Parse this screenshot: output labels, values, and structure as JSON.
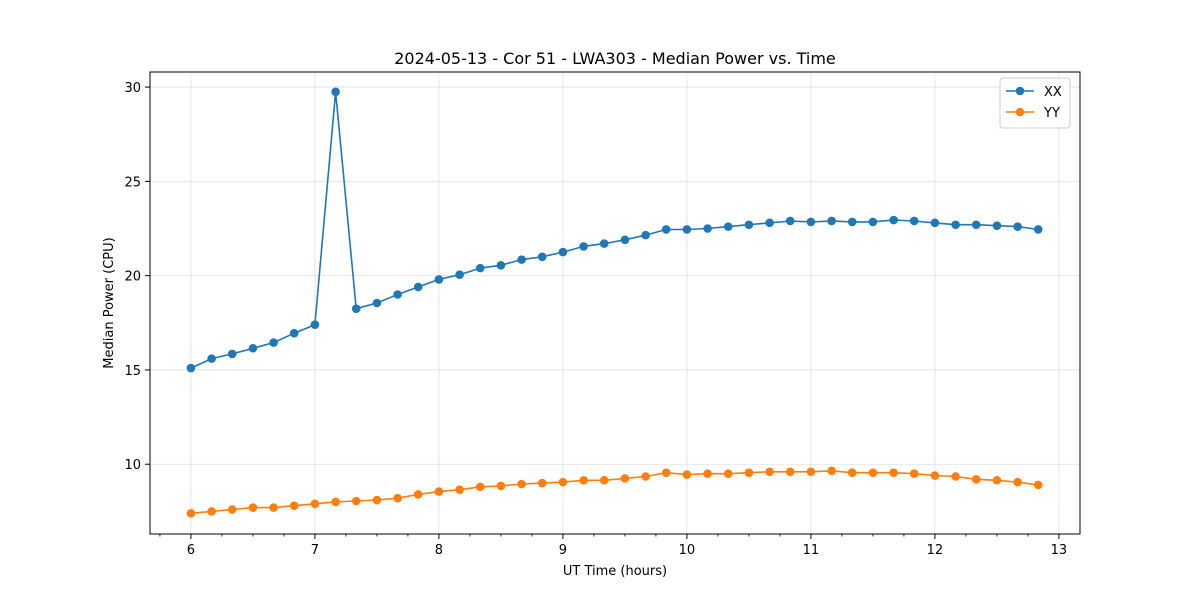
{
  "chart_data": {
    "type": "line",
    "title": "2024-05-13 - Cor 51 - LWA303 - Median Power vs. Time",
    "xlabel": "UT Time (hours)",
    "ylabel": "Median Power (CPU)",
    "xlim": [
      5.67,
      13.17
    ],
    "ylim": [
      6.3,
      30.8
    ],
    "xticks": [
      6,
      7,
      8,
      9,
      10,
      11,
      12,
      13
    ],
    "xtick_labels": [
      "6",
      "7",
      "8",
      "9",
      "10",
      "11",
      "12",
      "13"
    ],
    "yticks": [
      10,
      15,
      20,
      25,
      30
    ],
    "ytick_labels": [
      "10",
      "15",
      "20",
      "25",
      "30"
    ],
    "grid": true,
    "legend_position": "top-right",
    "x": [
      6.0,
      6.167,
      6.333,
      6.5,
      6.667,
      6.833,
      7.0,
      7.167,
      7.333,
      7.5,
      7.667,
      7.833,
      8.0,
      8.167,
      8.333,
      8.5,
      8.667,
      8.833,
      9.0,
      9.167,
      9.333,
      9.5,
      9.667,
      9.833,
      10.0,
      10.167,
      10.333,
      10.5,
      10.667,
      10.833,
      11.0,
      11.167,
      11.333,
      11.5,
      11.667,
      11.833,
      12.0,
      12.167,
      12.333,
      12.5,
      12.667,
      12.833
    ],
    "series": [
      {
        "name": "XX",
        "color": "#1f77b4",
        "values": [
          15.1,
          15.6,
          15.85,
          16.15,
          16.45,
          16.95,
          17.4,
          29.75,
          18.25,
          18.55,
          19.0,
          19.4,
          19.8,
          20.05,
          20.4,
          20.55,
          20.85,
          21.0,
          21.25,
          21.55,
          21.7,
          21.9,
          22.15,
          22.45,
          22.45,
          22.5,
          22.6,
          22.7,
          22.8,
          22.9,
          22.85,
          22.9,
          22.85,
          22.85,
          22.95,
          22.9,
          22.8,
          22.7,
          22.7,
          22.65,
          22.6,
          22.45
        ]
      },
      {
        "name": "YY",
        "color": "#ff7f0e",
        "values": [
          7.4,
          7.5,
          7.6,
          7.7,
          7.7,
          7.8,
          7.9,
          8.0,
          8.05,
          8.1,
          8.2,
          8.4,
          8.55,
          8.65,
          8.8,
          8.85,
          8.95,
          9.0,
          9.05,
          9.15,
          9.15,
          9.25,
          9.35,
          9.55,
          9.45,
          9.5,
          9.5,
          9.55,
          9.6,
          9.6,
          9.6,
          9.65,
          9.55,
          9.55,
          9.55,
          9.5,
          9.4,
          9.35,
          9.2,
          9.15,
          9.05,
          8.9
        ]
      }
    ]
  }
}
